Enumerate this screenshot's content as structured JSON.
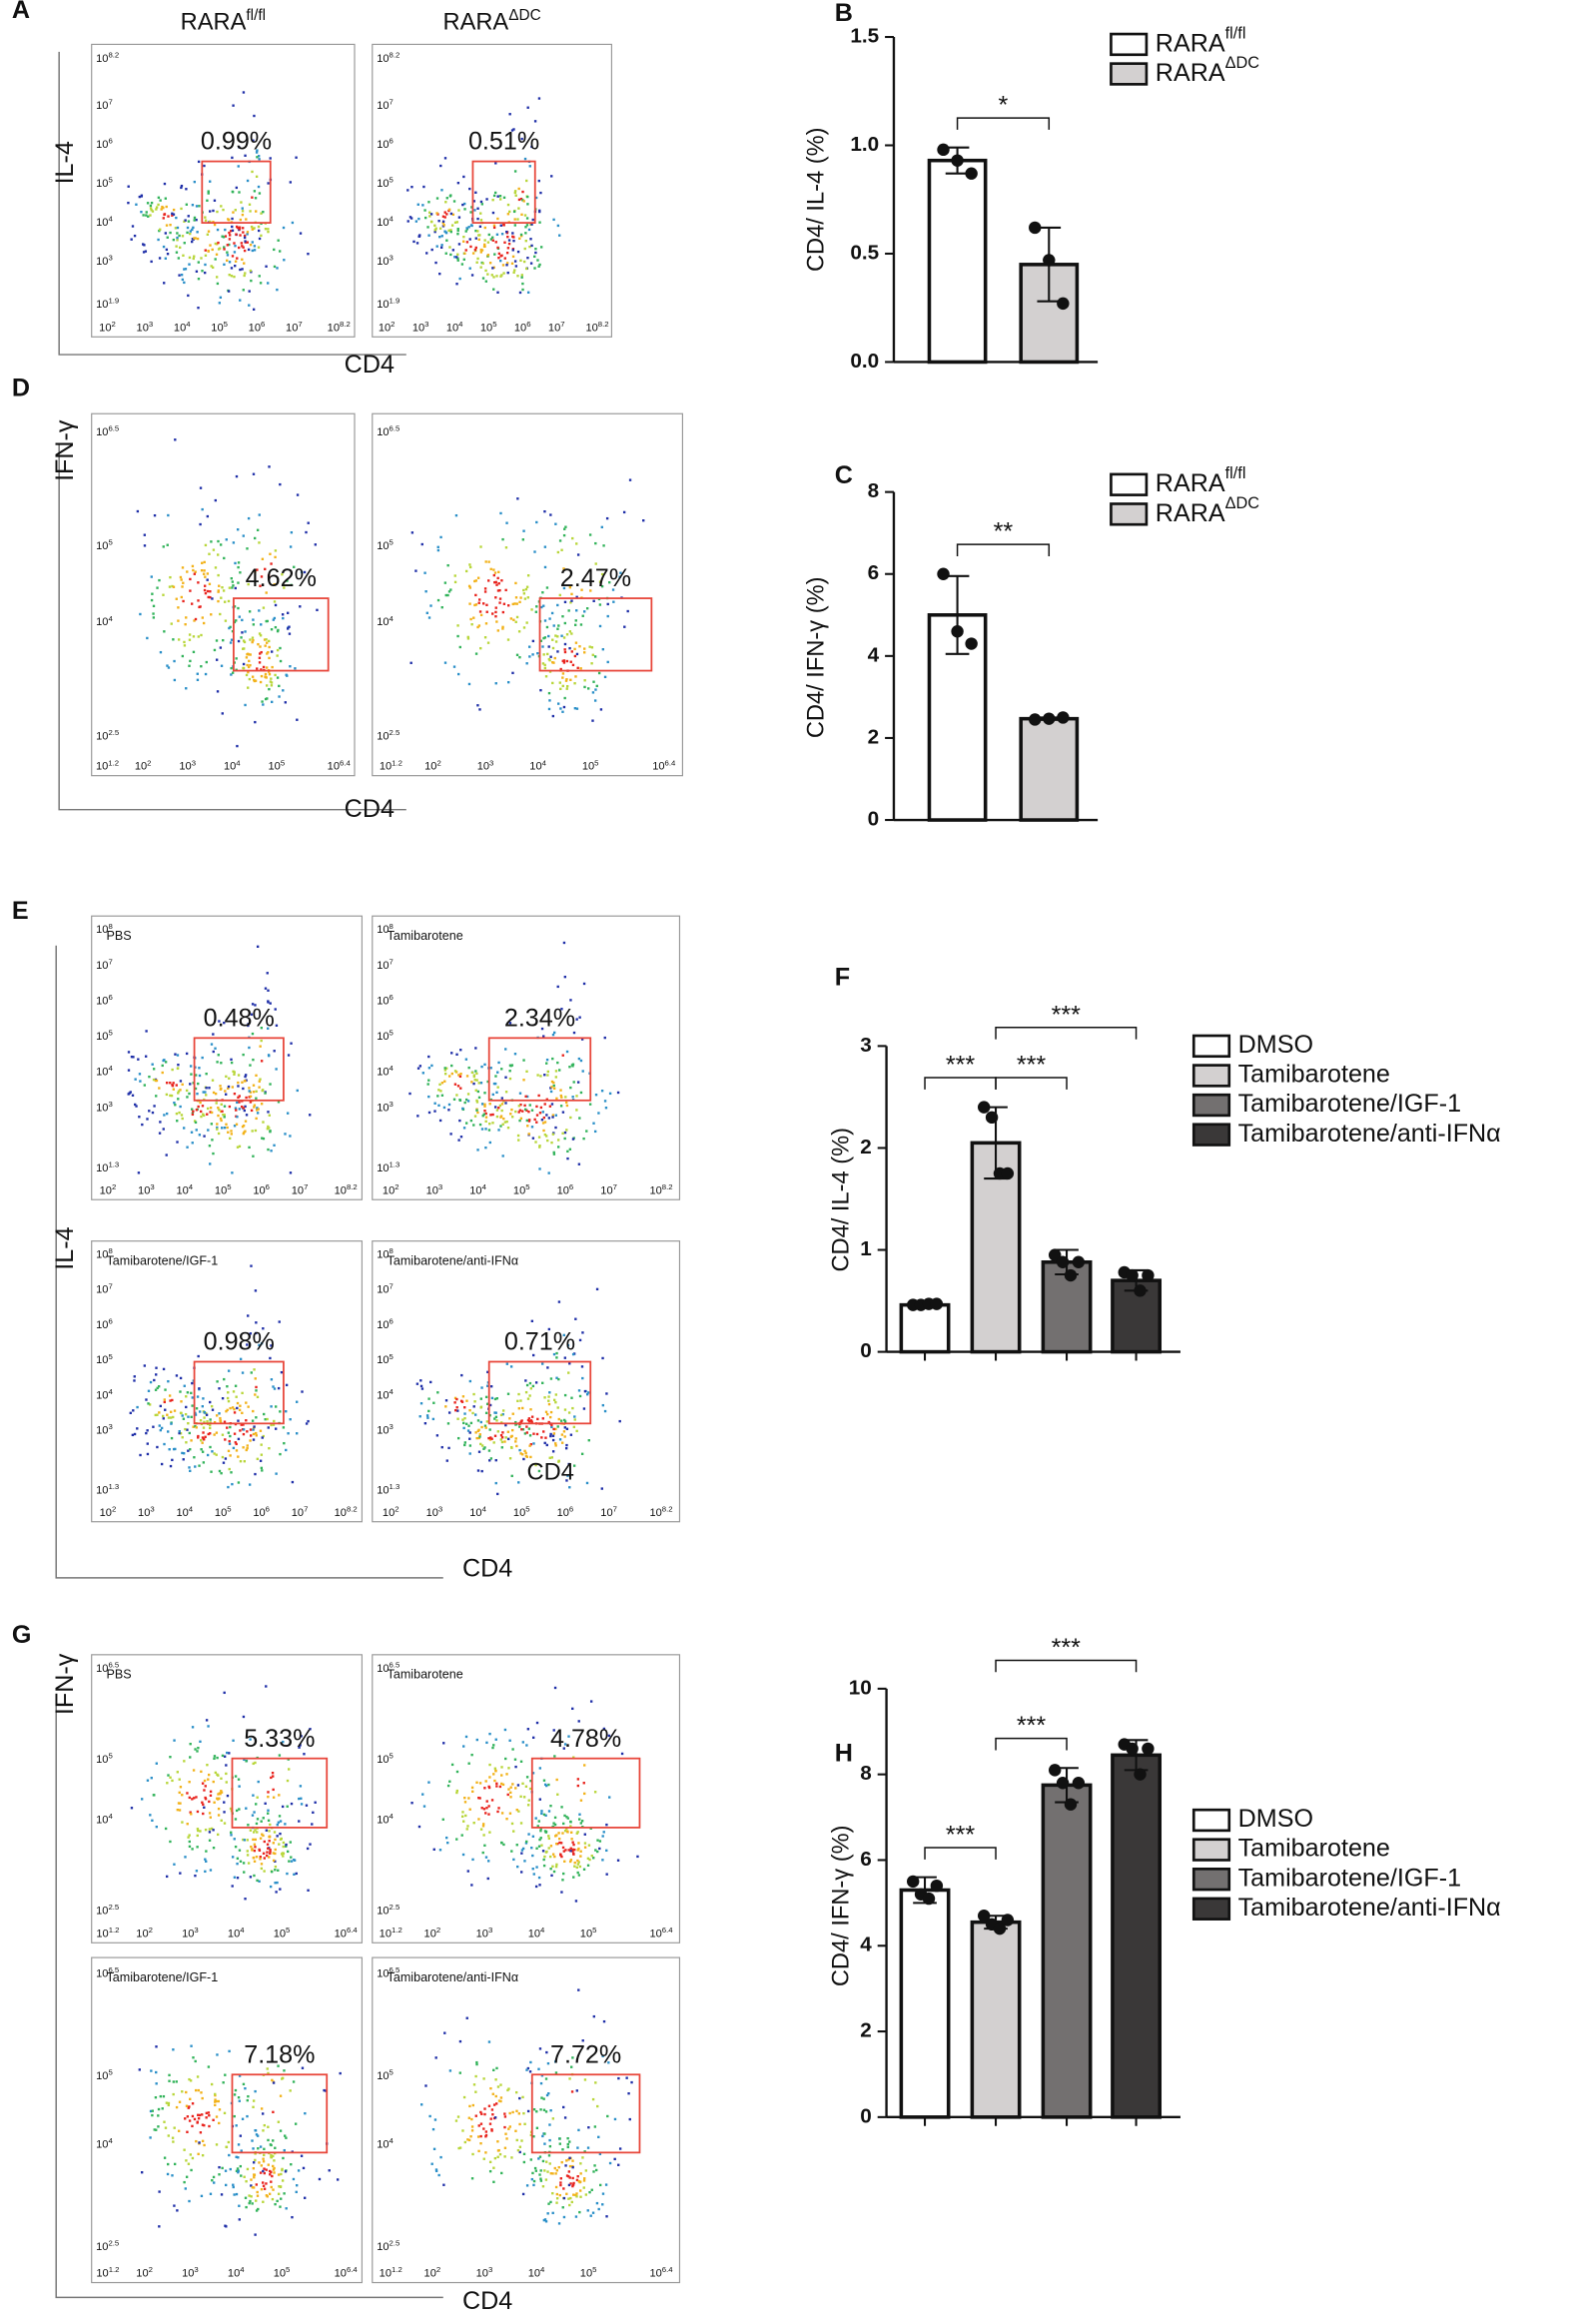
{
  "panels": [
    {
      "letter": "A",
      "y_label": "IL-4",
      "x_label": "CD4",
      "tick_base": "10",
      "x_ticks": [
        "2",
        "3",
        "4",
        "5",
        "6",
        "7",
        "8.2"
      ],
      "y_ticks": [
        "1.9",
        "3",
        "4",
        "5",
        "6",
        "7",
        "8.2"
      ],
      "plots": [
        {
          "title": {
            "base": "RARA",
            "sup": "fl/fl"
          },
          "gate": "0.99%"
        },
        {
          "title": {
            "base": "RARA",
            "sup": "ΔDC"
          },
          "gate": "0.51%"
        }
      ]
    },
    {
      "letter": "D",
      "y_label": "IFN-γ",
      "x_label": "CD4",
      "tick_base": "10",
      "x_ticks": [
        "1.2",
        "2",
        "3",
        "4",
        "5",
        "6.4"
      ],
      "y_ticks": [
        "2.5",
        "4",
        "5",
        "6.5"
      ],
      "plots": [
        {
          "gate": "4.62%"
        },
        {
          "gate": "2.47%"
        }
      ]
    },
    {
      "letter": "E",
      "y_label": "IL-4",
      "x_label": "CD4",
      "tick_base": "10",
      "x_ticks": [
        "2",
        "3",
        "4",
        "5",
        "6",
        "7",
        "8.2"
      ],
      "y_ticks": [
        "1.3",
        "3",
        "4",
        "5",
        "6",
        "7",
        "8"
      ],
      "plots": [
        {
          "label": "PBS",
          "gate": "0.48%"
        },
        {
          "label": "Tamibarotene",
          "gate": "2.34%"
        },
        {
          "label": "Tamibarotene/IGF-1",
          "gate": "0.98%"
        },
        {
          "label": "Tamibarotene/anti-IFNα",
          "gate": "0.71%",
          "note": "CD4"
        }
      ]
    },
    {
      "letter": "G",
      "y_label": "IFN-γ",
      "x_label": "CD4",
      "tick_base": "10",
      "x_ticks": [
        "1.2",
        "2",
        "3",
        "4",
        "5",
        "6.4"
      ],
      "y_ticks": [
        "2.5",
        "4",
        "5",
        "6.5"
      ],
      "plots": [
        {
          "label": "PBS",
          "gate": "5.33%"
        },
        {
          "label": "Tamibarotene",
          "gate": "4.78%"
        },
        {
          "label": "Tamibarotene/IGF-1",
          "gate": "7.18%"
        },
        {
          "label": "Tamibarotene/anti-IFNα",
          "gate": "7.72%"
        }
      ]
    }
  ],
  "chart_data": [
    {
      "type": "bar",
      "letter": "B",
      "ylabel": "CD4/ IL-4 (%)",
      "ylim": [
        0,
        1.5
      ],
      "yticks": [
        {
          "value": 0,
          "label": "0.0"
        },
        {
          "value": 0.5,
          "label": "0.5"
        },
        {
          "value": 1,
          "label": "1.0"
        },
        {
          "value": 1.5,
          "label": "1.5"
        }
      ],
      "series": [
        {
          "name": {
            "base": "RARA",
            "sup": "fl/fl"
          },
          "color": "#ffffff",
          "value": 0.93,
          "error": 0.06,
          "points": [
            0.98,
            0.93,
            0.87
          ]
        },
        {
          "name": {
            "base": "RARA",
            "sup": "ΔDC"
          },
          "color": "#d3d0d0",
          "value": 0.45,
          "error": 0.17,
          "points": [
            0.62,
            0.47,
            0.27
          ]
        }
      ],
      "significance": [
        {
          "between": [
            0,
            1
          ],
          "label": "*"
        }
      ]
    },
    {
      "type": "bar",
      "letter": "C",
      "ylabel": "CD4/ IFN-γ (%)",
      "ylim": [
        0,
        8
      ],
      "yticks": [
        0,
        2,
        4,
        6,
        8
      ],
      "series": [
        {
          "name": {
            "base": "RARA",
            "sup": "fl/fl"
          },
          "color": "#ffffff",
          "value": 5.0,
          "error": 0.95,
          "points": [
            6.0,
            4.6,
            4.3
          ]
        },
        {
          "name": {
            "base": "RARA",
            "sup": "ΔDC"
          },
          "color": "#d3d0d0",
          "value": 2.47,
          "error": 0.03,
          "points": [
            2.45,
            2.47,
            2.5
          ]
        }
      ],
      "significance": [
        {
          "between": [
            0,
            1
          ],
          "label": "**"
        }
      ]
    },
    {
      "type": "bar",
      "letter": "F",
      "ylabel": "CD4/ IL-4 (%)",
      "ylim": [
        0,
        3
      ],
      "yticks": [
        0,
        1,
        2,
        3
      ],
      "series": [
        {
          "name": "DMSO",
          "color": "#ffffff",
          "value": 0.46,
          "error": 0.02,
          "points": [
            0.46,
            0.46,
            0.47,
            0.47
          ]
        },
        {
          "name": "Tamibarotene",
          "color": "#d3d0d0",
          "value": 2.05,
          "error": 0.35,
          "points": [
            2.4,
            2.3,
            1.75,
            1.75
          ]
        },
        {
          "name": "Tamibarotene/IGF-1",
          "color": "#737070",
          "value": 0.88,
          "error": 0.12,
          "points": [
            0.95,
            0.88,
            0.75,
            0.88
          ]
        },
        {
          "name": "Tamibarotene/anti-IFNα",
          "color": "#3a3838",
          "value": 0.7,
          "error": 0.1,
          "points": [
            0.78,
            0.75,
            0.6,
            0.75
          ]
        }
      ],
      "significance": [
        {
          "between": [
            0,
            1
          ],
          "label": "***"
        },
        {
          "between": [
            1,
            2
          ],
          "label": "***"
        },
        {
          "between": [
            1,
            3
          ],
          "label": "***"
        }
      ]
    },
    {
      "type": "bar",
      "letter": "H",
      "ylabel": "CD4/ IFN-γ (%)",
      "ylim": [
        0,
        10
      ],
      "yticks": [
        0,
        2,
        4,
        6,
        8,
        10
      ],
      "series": [
        {
          "name": "DMSO",
          "color": "#ffffff",
          "value": 5.3,
          "error": 0.3,
          "points": [
            5.5,
            5.2,
            5.1,
            5.4
          ]
        },
        {
          "name": "Tamibarotene",
          "color": "#d3d0d0",
          "value": 4.55,
          "error": 0.15,
          "points": [
            4.7,
            4.5,
            4.4,
            4.6
          ]
        },
        {
          "name": "Tamibarotene/IGF-1",
          "color": "#737070",
          "value": 7.75,
          "error": 0.4,
          "points": [
            8.1,
            7.8,
            7.3,
            7.8
          ]
        },
        {
          "name": "Tamibarotene/anti-IFNα",
          "color": "#3a3838",
          "value": 8.45,
          "error": 0.35,
          "points": [
            8.7,
            8.6,
            8.0,
            8.6
          ]
        }
      ],
      "significance": [
        {
          "between": [
            0,
            1
          ],
          "label": "***"
        },
        {
          "between": [
            1,
            2
          ],
          "label": "***"
        },
        {
          "between": [
            1,
            3
          ],
          "label": "***"
        }
      ]
    }
  ]
}
